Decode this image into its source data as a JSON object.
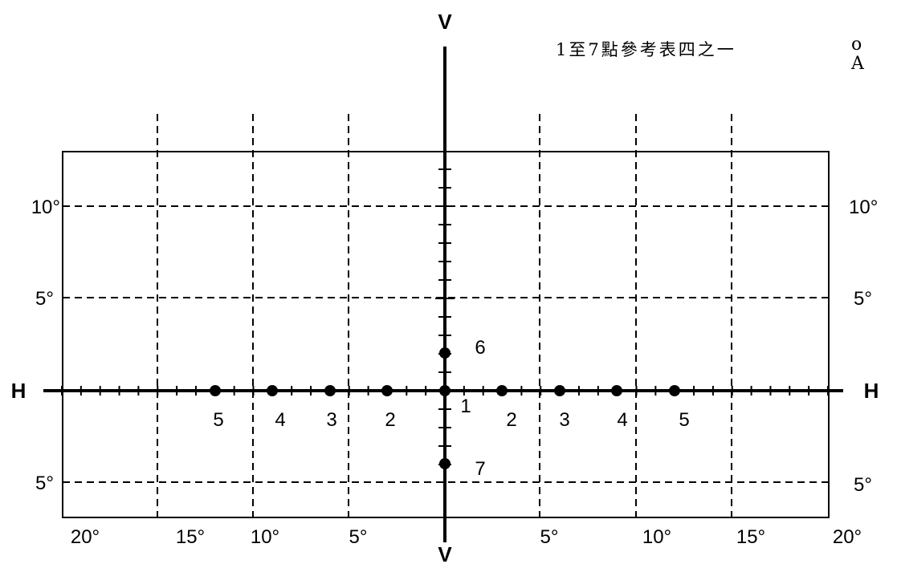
{
  "note": "1至7點參考表四之一",
  "edge_fragment": [
    "o",
    "A"
  ],
  "axes": {
    "vertical_label": "V",
    "horizontal_label": "H"
  },
  "degree_labels": {
    "top": [
      "20°",
      "15°",
      "10°",
      "5°",
      "5°",
      "10°",
      "15°",
      "20°"
    ],
    "left": [
      "10°",
      "5°",
      "5°"
    ],
    "right": [
      "10°",
      "5°",
      "5°"
    ]
  },
  "points": {
    "center": "1",
    "left": [
      "5",
      "4",
      "3",
      "2"
    ],
    "right": [
      "2",
      "3",
      "4",
      "5"
    ],
    "upper": "6",
    "lower": "7"
  }
}
